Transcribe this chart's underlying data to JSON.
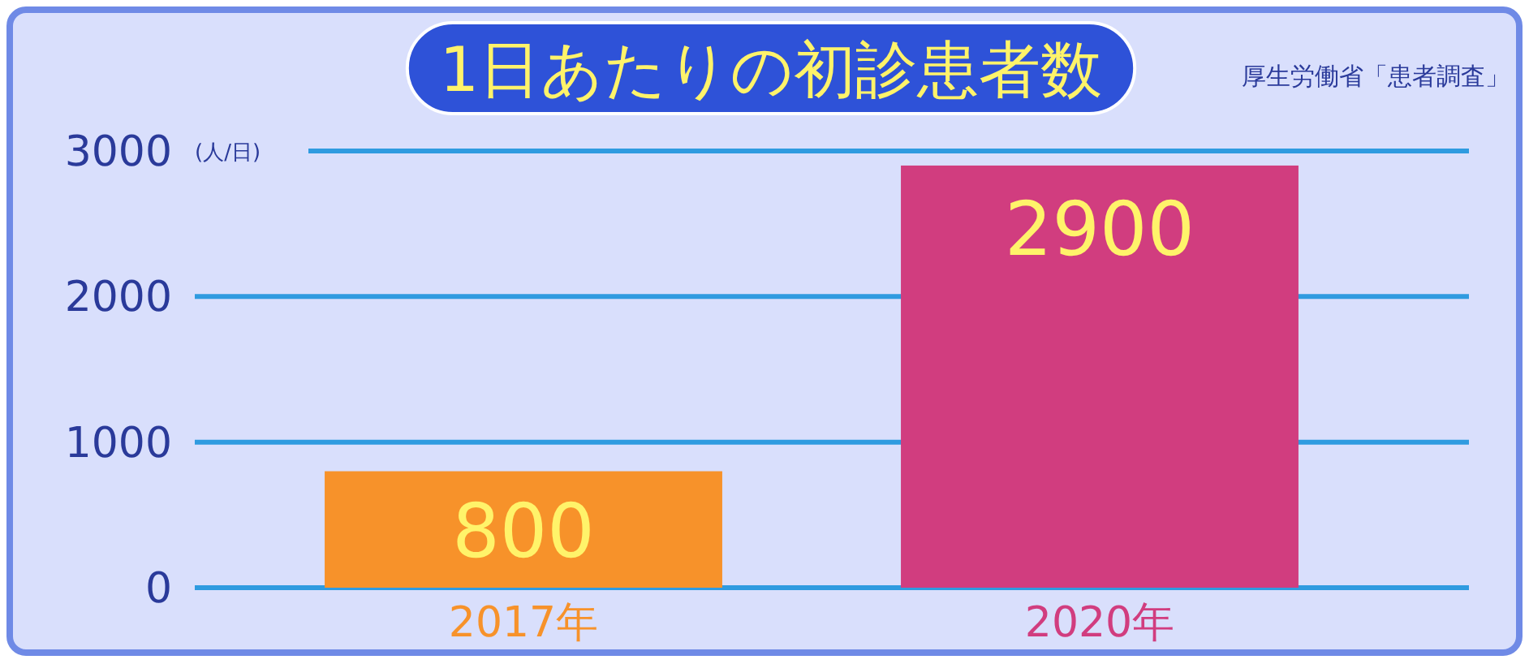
{
  "chart_data": {
    "type": "bar",
    "title": "1日あたりの初診患者数",
    "ylabel": "(人/日)",
    "annotations": [
      "厚生労働省「患者調査」"
    ],
    "categories": [
      "2017年",
      "2020年"
    ],
    "values": [
      800,
      2900
    ],
    "colors": [
      "#f7922a",
      "#d13d7f"
    ],
    "ylim": [
      0,
      3000
    ],
    "yticks": [
      0,
      1000,
      2000,
      3000
    ],
    "grid": "y",
    "data_labels": true
  }
}
